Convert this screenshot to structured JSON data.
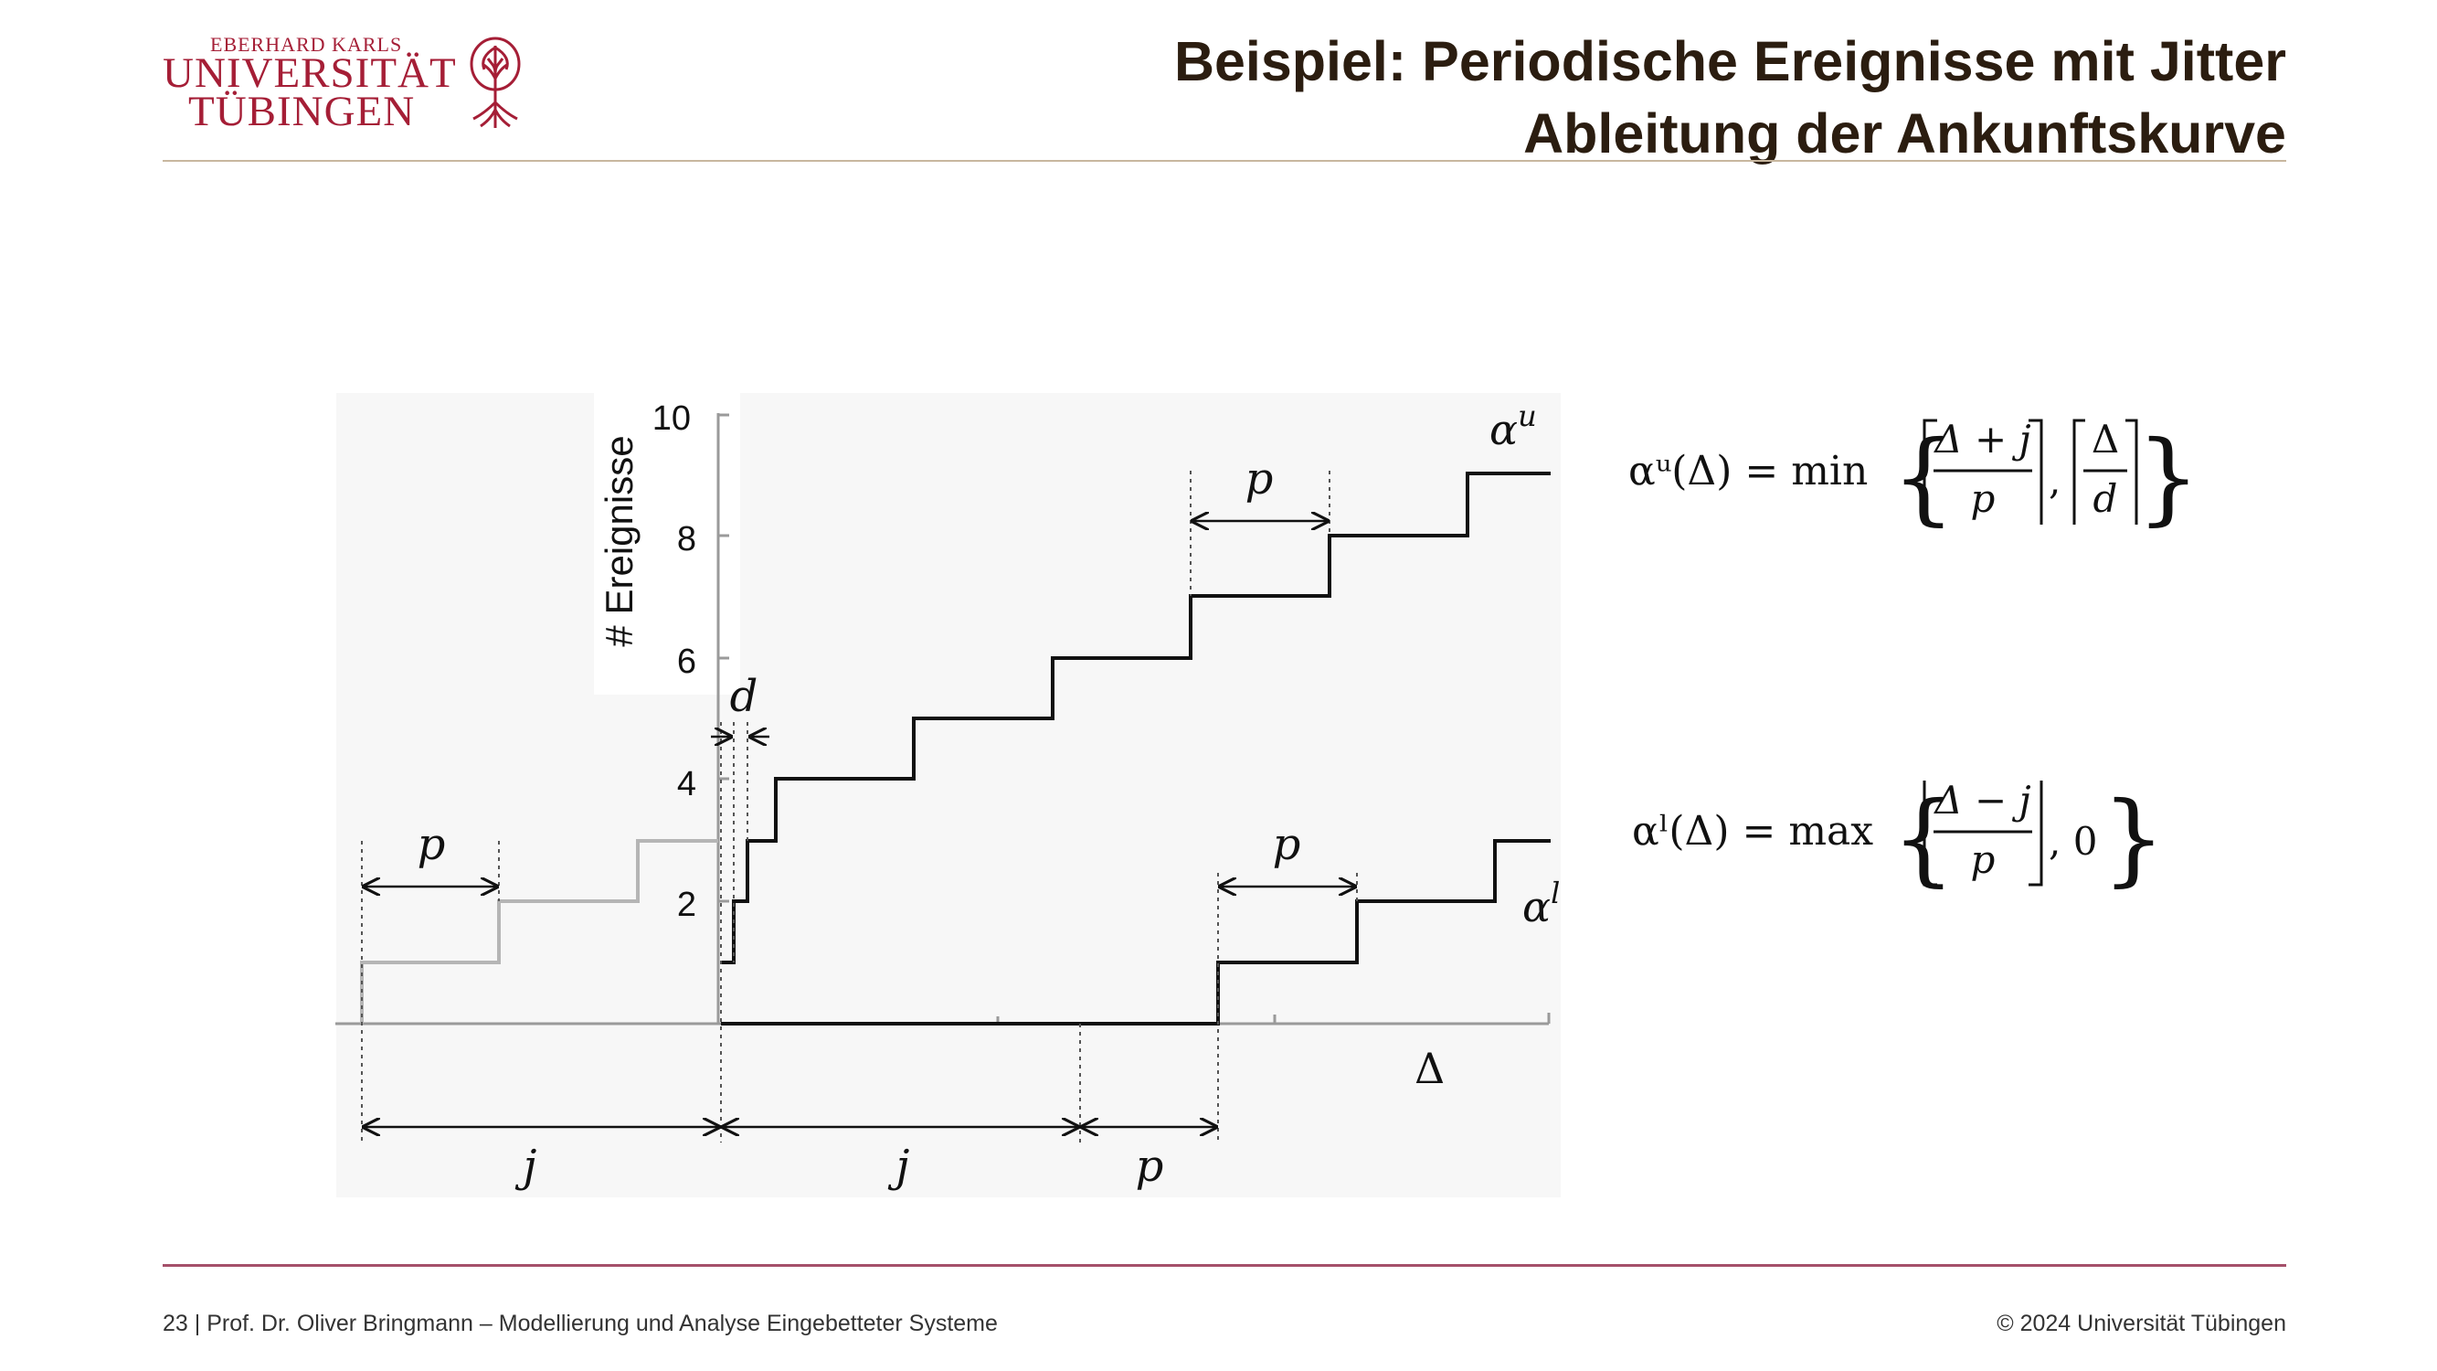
{
  "header": {
    "logo": {
      "line1": "EBERHARD KARLS",
      "line2": "UNIVERSITÄT",
      "line3": "TÜBINGEN",
      "color": "#a51e36",
      "icon": "tree-icon"
    },
    "title_line1": "Beispiel: Periodische Ereignisse mit Jitter",
    "title_line2": "Ableitung der Ankunftskurve"
  },
  "footer": {
    "left": "23 | Prof. Dr. Oliver Bringmann – Modellierung und Analyse Eingebetteter Systeme",
    "right": "© 2024 Universität Tübingen"
  },
  "diagram": {
    "y_axis_label": "# Ereignisse",
    "y_ticks": [
      "2",
      "4",
      "6",
      "8",
      "10"
    ],
    "x_axis_label": "Δ",
    "upper_curve_label": "α",
    "upper_curve_sup": "u",
    "lower_curve_label": "α",
    "lower_curve_sup": "l",
    "dim_labels": {
      "p_left": "p",
      "p_upper": "p",
      "p_lower": "p",
      "d": "d",
      "j_left": "j",
      "j_right": "j",
      "p_bottom": "p"
    },
    "formula_upper": {
      "lhs": "αᵘ(Δ) = min",
      "frac1_num": "Δ + j",
      "frac1_den": "p",
      "sep": ",",
      "frac2_num": "Δ",
      "frac2_den": "d"
    },
    "formula_lower": {
      "lhs": "αˡ(Δ) = max",
      "frac1_num": "Δ − j",
      "frac1_den": "p",
      "tail": ", 0"
    },
    "colors": {
      "curve": "#111111",
      "shifted_curve": "#b5b5b5",
      "axis": "#9a9a9a",
      "panel": "#f7f7f7"
    }
  }
}
